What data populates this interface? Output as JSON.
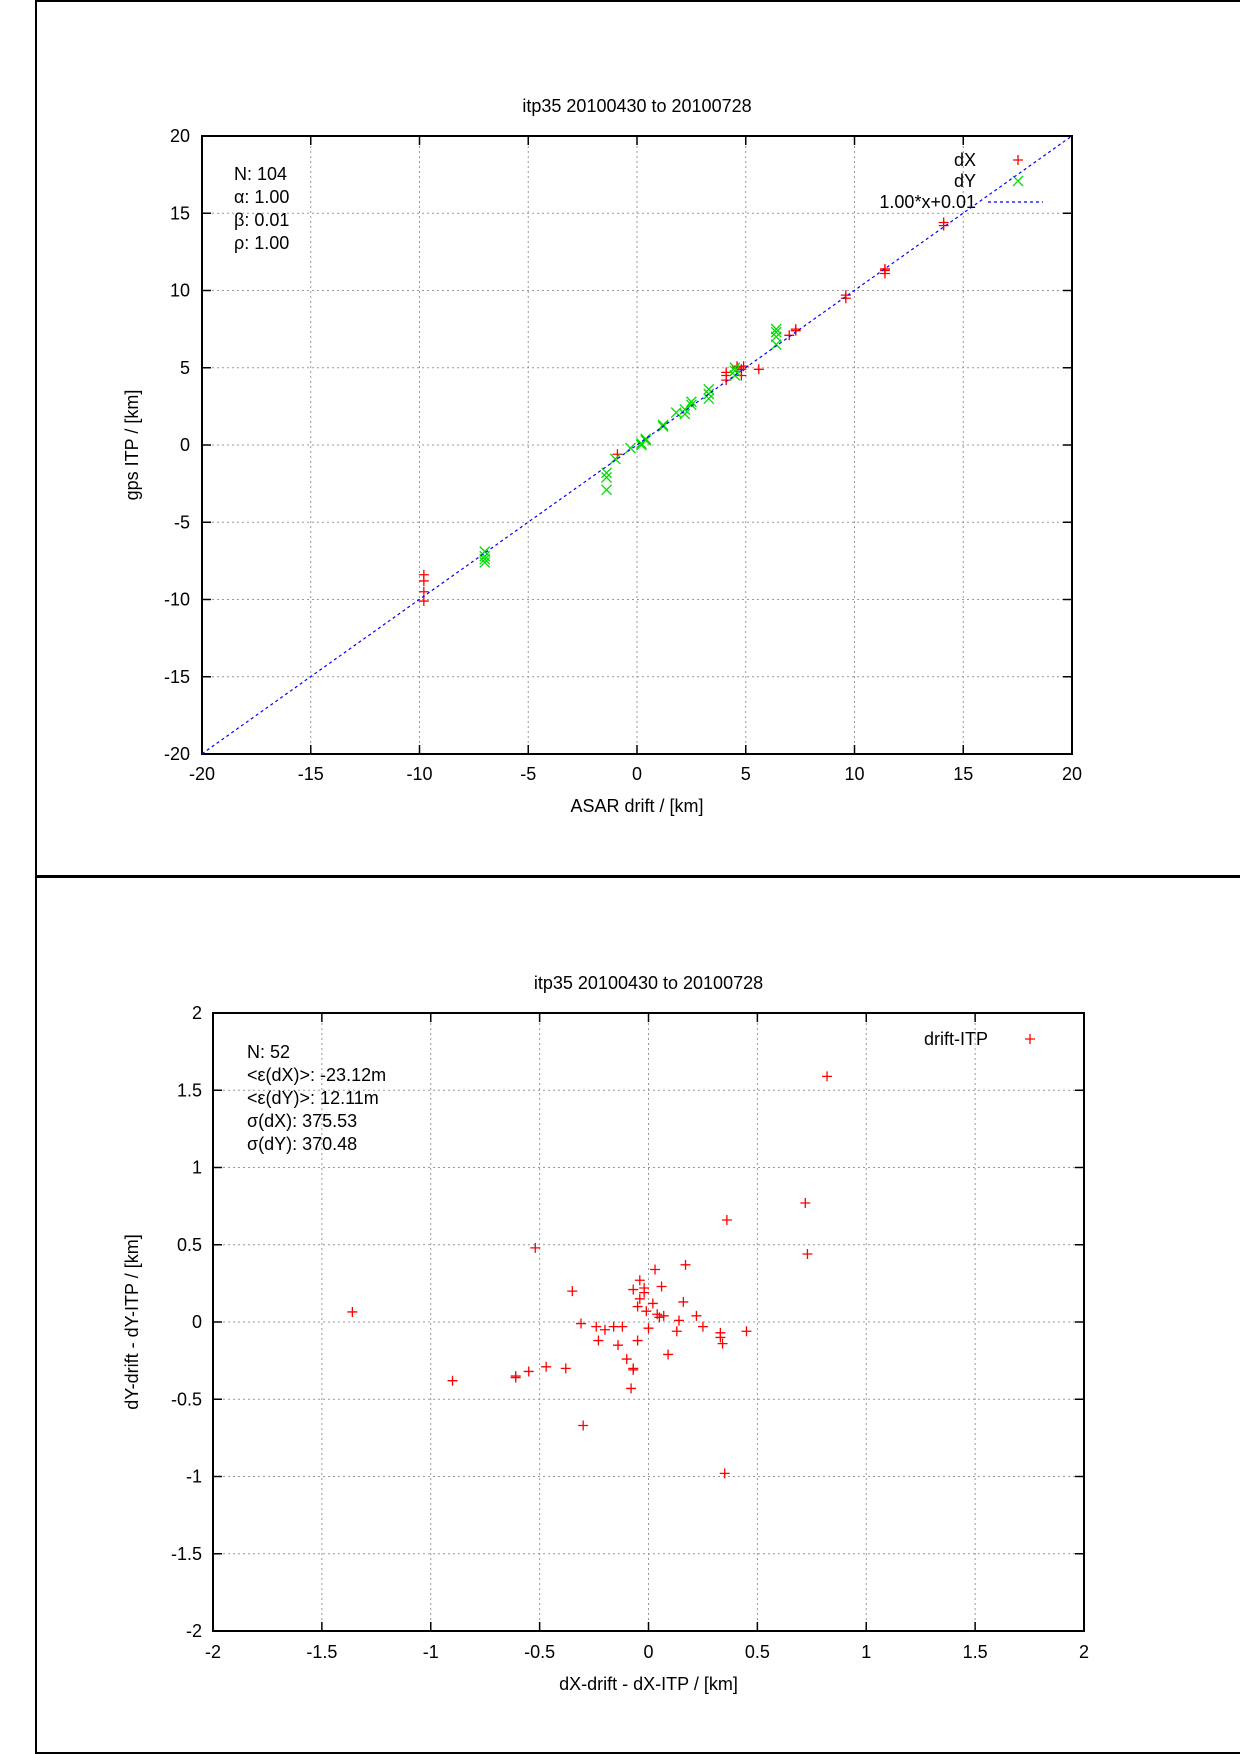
{
  "chart_data": [
    {
      "type": "scatter",
      "title": "itp35 20100430 to 20100728",
      "xlabel": "ASAR drift / [km]",
      "ylabel": "gps ITP / [km]",
      "xlim": [
        -20,
        20
      ],
      "ylim": [
        -20,
        20
      ],
      "xticks": [
        -20,
        -15,
        -10,
        -5,
        0,
        5,
        10,
        15,
        20
      ],
      "yticks": [
        -20,
        -15,
        -10,
        -5,
        0,
        5,
        10,
        15,
        20
      ],
      "grid": true,
      "legend_position": "top-right",
      "stats": [
        "N: 104",
        "α: 1.00",
        "β: 0.01",
        "ρ: 1.00"
      ],
      "series": [
        {
          "name": "dX",
          "marker": "plus",
          "color": "#ff0000",
          "points": [
            [
              -9.8,
              -8.4
            ],
            [
              -9.8,
              -8.8
            ],
            [
              -9.8,
              -9.5
            ],
            [
              -9.8,
              -10.1
            ],
            [
              -0.9,
              -0.6
            ],
            [
              4.1,
              4.2
            ],
            [
              4.1,
              4.5
            ],
            [
              4.1,
              4.7
            ],
            [
              4.6,
              5.1
            ],
            [
              4.6,
              5.0
            ],
            [
              4.8,
              4.5
            ],
            [
              4.8,
              4.9
            ],
            [
              4.9,
              5.1
            ],
            [
              5.6,
              4.9
            ],
            [
              7.0,
              7.1
            ],
            [
              7.3,
              7.5
            ],
            [
              7.3,
              7.4
            ],
            [
              9.6,
              9.7
            ],
            [
              9.6,
              9.5
            ],
            [
              11.4,
              11.3
            ],
            [
              11.4,
              11.1
            ],
            [
              11.4,
              11.4
            ],
            [
              14.1,
              14.2
            ],
            [
              14.1,
              14.4
            ]
          ]
        },
        {
          "name": "dY",
          "marker": "cross",
          "color": "#00dd00",
          "points": [
            [
              -7.0,
              -6.9
            ],
            [
              -7.0,
              -7.2
            ],
            [
              -7.0,
              -7.4
            ],
            [
              -7.0,
              -7.6
            ],
            [
              -1.4,
              -1.8
            ],
            [
              -1.4,
              -2.1
            ],
            [
              -1.4,
              -2.9
            ],
            [
              -1.0,
              -0.9
            ],
            [
              -0.3,
              -0.2
            ],
            [
              0.2,
              0.0
            ],
            [
              0.2,
              0.1
            ],
            [
              0.4,
              0.3
            ],
            [
              0.4,
              0.4
            ],
            [
              1.2,
              1.2
            ],
            [
              1.2,
              1.3
            ],
            [
              1.8,
              2.1
            ],
            [
              2.2,
              2.0
            ],
            [
              2.2,
              2.3
            ],
            [
              2.5,
              2.6
            ],
            [
              2.5,
              2.8
            ],
            [
              3.3,
              3.0
            ],
            [
              3.3,
              3.3
            ],
            [
              3.3,
              3.6
            ],
            [
              4.5,
              4.5
            ],
            [
              4.5,
              4.8
            ],
            [
              4.5,
              5.0
            ],
            [
              6.4,
              6.5
            ],
            [
              6.4,
              7.0
            ],
            [
              6.4,
              7.3
            ],
            [
              6.4,
              7.5
            ]
          ]
        },
        {
          "name": "1.00*x+0.01",
          "type": "line",
          "color": "#0000ff",
          "slope": 1.0,
          "intercept": 0.01
        }
      ]
    },
    {
      "type": "scatter",
      "title": "itp35 20100430 to 20100728",
      "xlabel": "dX-drift - dX-ITP / [km]",
      "ylabel": "dY-drift - dY-ITP / [km]",
      "xlim": [
        -2,
        2
      ],
      "ylim": [
        -2,
        2
      ],
      "xticks": [
        -2,
        -1.5,
        -1,
        -0.5,
        0,
        0.5,
        1,
        1.5,
        2
      ],
      "yticks": [
        -2,
        -1.5,
        -1,
        -0.5,
        0,
        0.5,
        1,
        1.5,
        2
      ],
      "grid": true,
      "legend_position": "top-right",
      "stats": [
        "N: 52",
        "<ε(dX)>:  -23.12m",
        "<ε(dY)>: 12.11m",
        "σ(dX):  375.53",
        "σ(dY):  370.48"
      ],
      "series": [
        {
          "name": "drift-ITP",
          "marker": "plus",
          "color": "#ff0000",
          "points": [
            [
              -1.36,
              0.065
            ],
            [
              -0.9,
              -0.38
            ],
            [
              -0.61,
              -0.36
            ],
            [
              -0.61,
              -0.35
            ],
            [
              -0.55,
              -0.32
            ],
            [
              -0.52,
              0.48
            ],
            [
              -0.47,
              -0.29
            ],
            [
              -0.38,
              -0.3
            ],
            [
              -0.35,
              0.2
            ],
            [
              -0.31,
              -0.01
            ],
            [
              -0.3,
              -0.67
            ],
            [
              -0.24,
              -0.03
            ],
            [
              -0.23,
              -0.12
            ],
            [
              -0.2,
              -0.05
            ],
            [
              -0.16,
              -0.03
            ],
            [
              -0.14,
              -0.15
            ],
            [
              -0.12,
              -0.03
            ],
            [
              -0.1,
              -0.24
            ],
            [
              -0.08,
              -0.43
            ],
            [
              -0.07,
              -0.31
            ],
            [
              -0.07,
              -0.3
            ],
            [
              -0.07,
              0.21
            ],
            [
              -0.05,
              0.1
            ],
            [
              -0.05,
              -0.12
            ],
            [
              -0.04,
              0.27
            ],
            [
              -0.04,
              0.15
            ],
            [
              -0.02,
              0.19
            ],
            [
              -0.02,
              0.22
            ],
            [
              -0.01,
              0.07
            ],
            [
              0.0,
              -0.04
            ],
            [
              0.02,
              0.12
            ],
            [
              0.03,
              0.34
            ],
            [
              0.04,
              0.05
            ],
            [
              0.05,
              0.03
            ],
            [
              0.06,
              0.23
            ],
            [
              0.07,
              0.04
            ],
            [
              0.09,
              -0.21
            ],
            [
              0.13,
              -0.06
            ],
            [
              0.14,
              0.01
            ],
            [
              0.16,
              0.13
            ],
            [
              0.17,
              0.37
            ],
            [
              0.22,
              0.04
            ],
            [
              0.25,
              -0.03
            ],
            [
              0.33,
              -0.07
            ],
            [
              0.33,
              -0.1
            ],
            [
              0.34,
              -0.14
            ],
            [
              0.35,
              -0.98
            ],
            [
              0.36,
              0.66
            ],
            [
              0.45,
              -0.06
            ],
            [
              0.72,
              0.77
            ],
            [
              0.73,
              0.44
            ],
            [
              0.82,
              1.59
            ]
          ]
        }
      ]
    }
  ]
}
